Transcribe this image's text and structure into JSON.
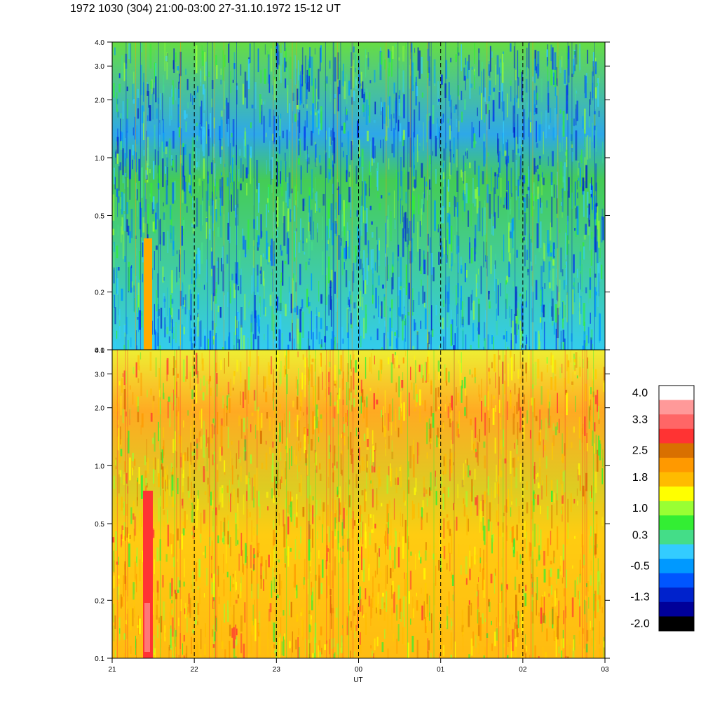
{
  "title": "1972 1030 (304) 21:00-03:00 27-31.10.1972  15-12 UT",
  "chart_data": {
    "type": "heatmap",
    "xlabel": "UT",
    "x_ticks": [
      "21",
      "22",
      "23",
      "00",
      "01",
      "02",
      "03"
    ],
    "x_range_hours": [
      21,
      27
    ],
    "y_scale": "log",
    "y_ticks": [
      "0.1",
      "0.2",
      "0.5",
      "1.0",
      "2.0",
      "3.0",
      "4.0"
    ],
    "y_tick_values": [
      0.1,
      0.2,
      0.5,
      1.0,
      2.0,
      3.0,
      4.0
    ],
    "y_range": [
      0.1,
      4.0
    ],
    "grid": "dashed vertical lines at each hour",
    "colorbar": {
      "labels": [
        "4.0",
        "3.3",
        "2.5",
        "1.8",
        "1.0",
        "0.3",
        "-0.5",
        "-1.3",
        "-2.0"
      ],
      "label_values": [
        4.0,
        3.3,
        2.5,
        1.8,
        1.0,
        0.3,
        -0.5,
        -1.3,
        -2.0
      ],
      "range": [
        -2.0,
        4.0
      ],
      "colors": [
        "#ffffff",
        "#ff9999",
        "#ff6666",
        "#ff3333",
        "#d97000",
        "#ff9900",
        "#ffbb00",
        "#ffff00",
        "#99ff33",
        "#33ee33",
        "#44dd88",
        "#33ccff",
        "#0099ff",
        "#0055ff",
        "#0022cc",
        "#000099",
        "#000000"
      ]
    },
    "panels": [
      {
        "name": "upper",
        "dominant_level_range": [
          -1.3,
          1.0
        ]
      },
      {
        "name": "lower",
        "dominant_level_range": [
          0.3,
          2.5
        ]
      }
    ]
  }
}
